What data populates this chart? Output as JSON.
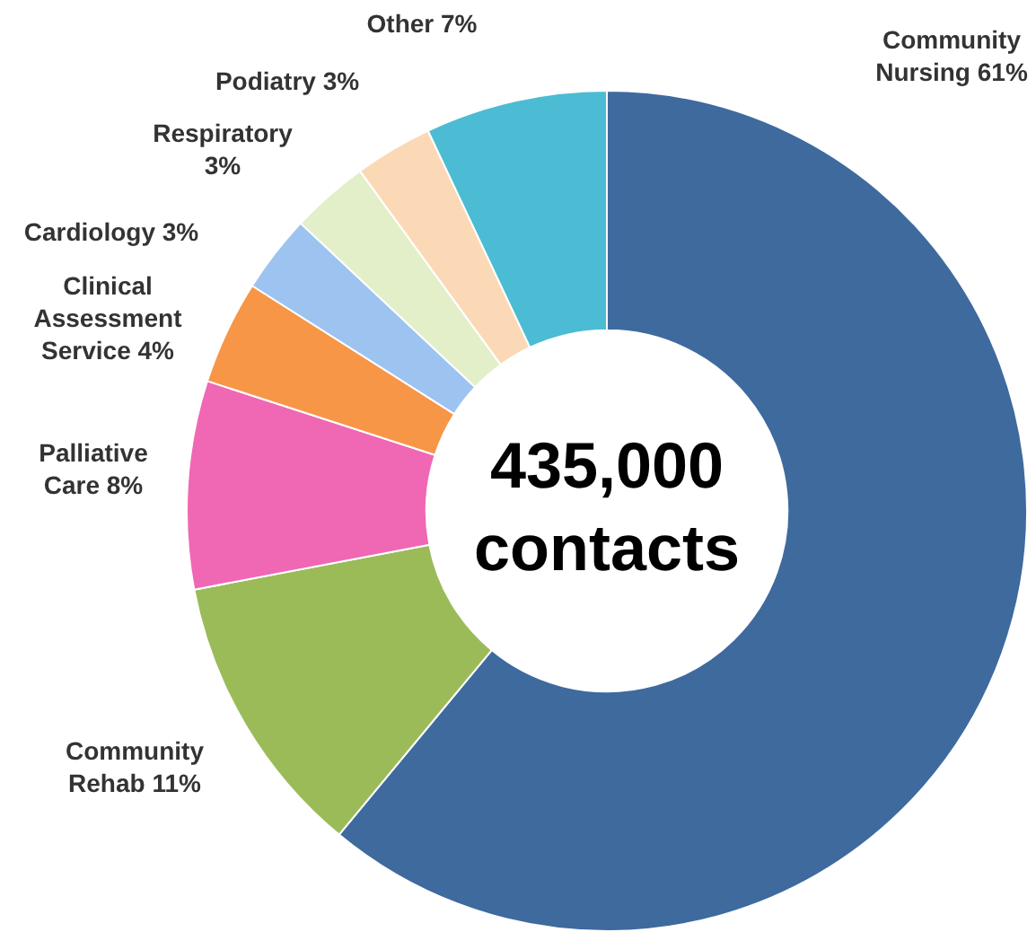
{
  "chart_data": {
    "type": "donut",
    "categories": [
      "Community Nursing",
      "Community Rehab",
      "Palliative Care",
      "Clinical Assessment Service",
      "Cardiology",
      "Respiratory",
      "Podiatry",
      "Other"
    ],
    "values": [
      61,
      11,
      8,
      4,
      3,
      3,
      3,
      7
    ],
    "value_labels": [
      "61%",
      "11%",
      "8%",
      "4%",
      "3%",
      "3%",
      "3%",
      "7%"
    ],
    "colors": [
      "#3e6a9e",
      "#9bbb59",
      "#f067b4",
      "#f79646",
      "#9dc3f0",
      "#e2efc8",
      "#fcd9b6",
      "#4bbcd3"
    ],
    "annotations": [
      "435,000 contacts"
    ],
    "legend": false
  }
}
